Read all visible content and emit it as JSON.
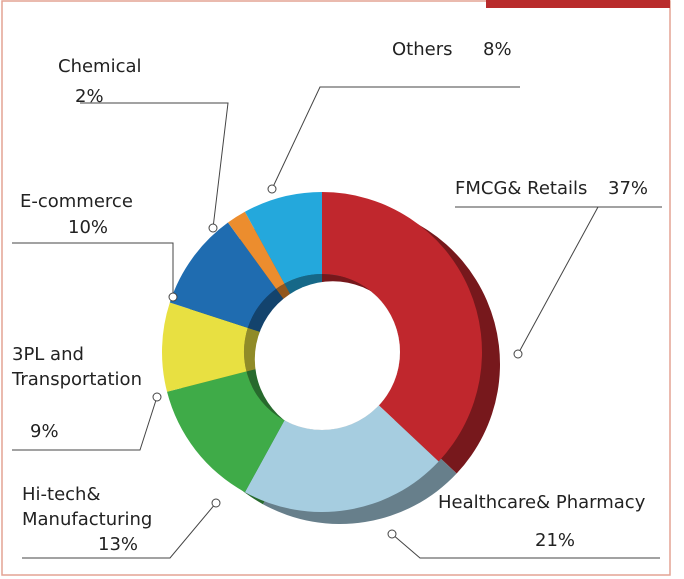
{
  "chart_data": {
    "type": "pie",
    "categories": [
      "FMCG& Retails",
      "Healthcare& Pharmacy",
      "Hi-tech& Manufacturing",
      "3PL and Transportation",
      "E-commerce",
      "Chemical",
      "Others"
    ],
    "values": [
      37,
      21,
      13,
      9,
      10,
      2,
      8
    ],
    "value_labels": [
      "37%",
      "21%",
      "13%",
      "9%",
      "10%",
      "2%",
      "8%"
    ],
    "colors": [
      "#c0272d",
      "#a6cde0",
      "#3fab48",
      "#e8e041",
      "#1f6cb0",
      "#ec8d2e",
      "#24a8dc"
    ]
  }
}
